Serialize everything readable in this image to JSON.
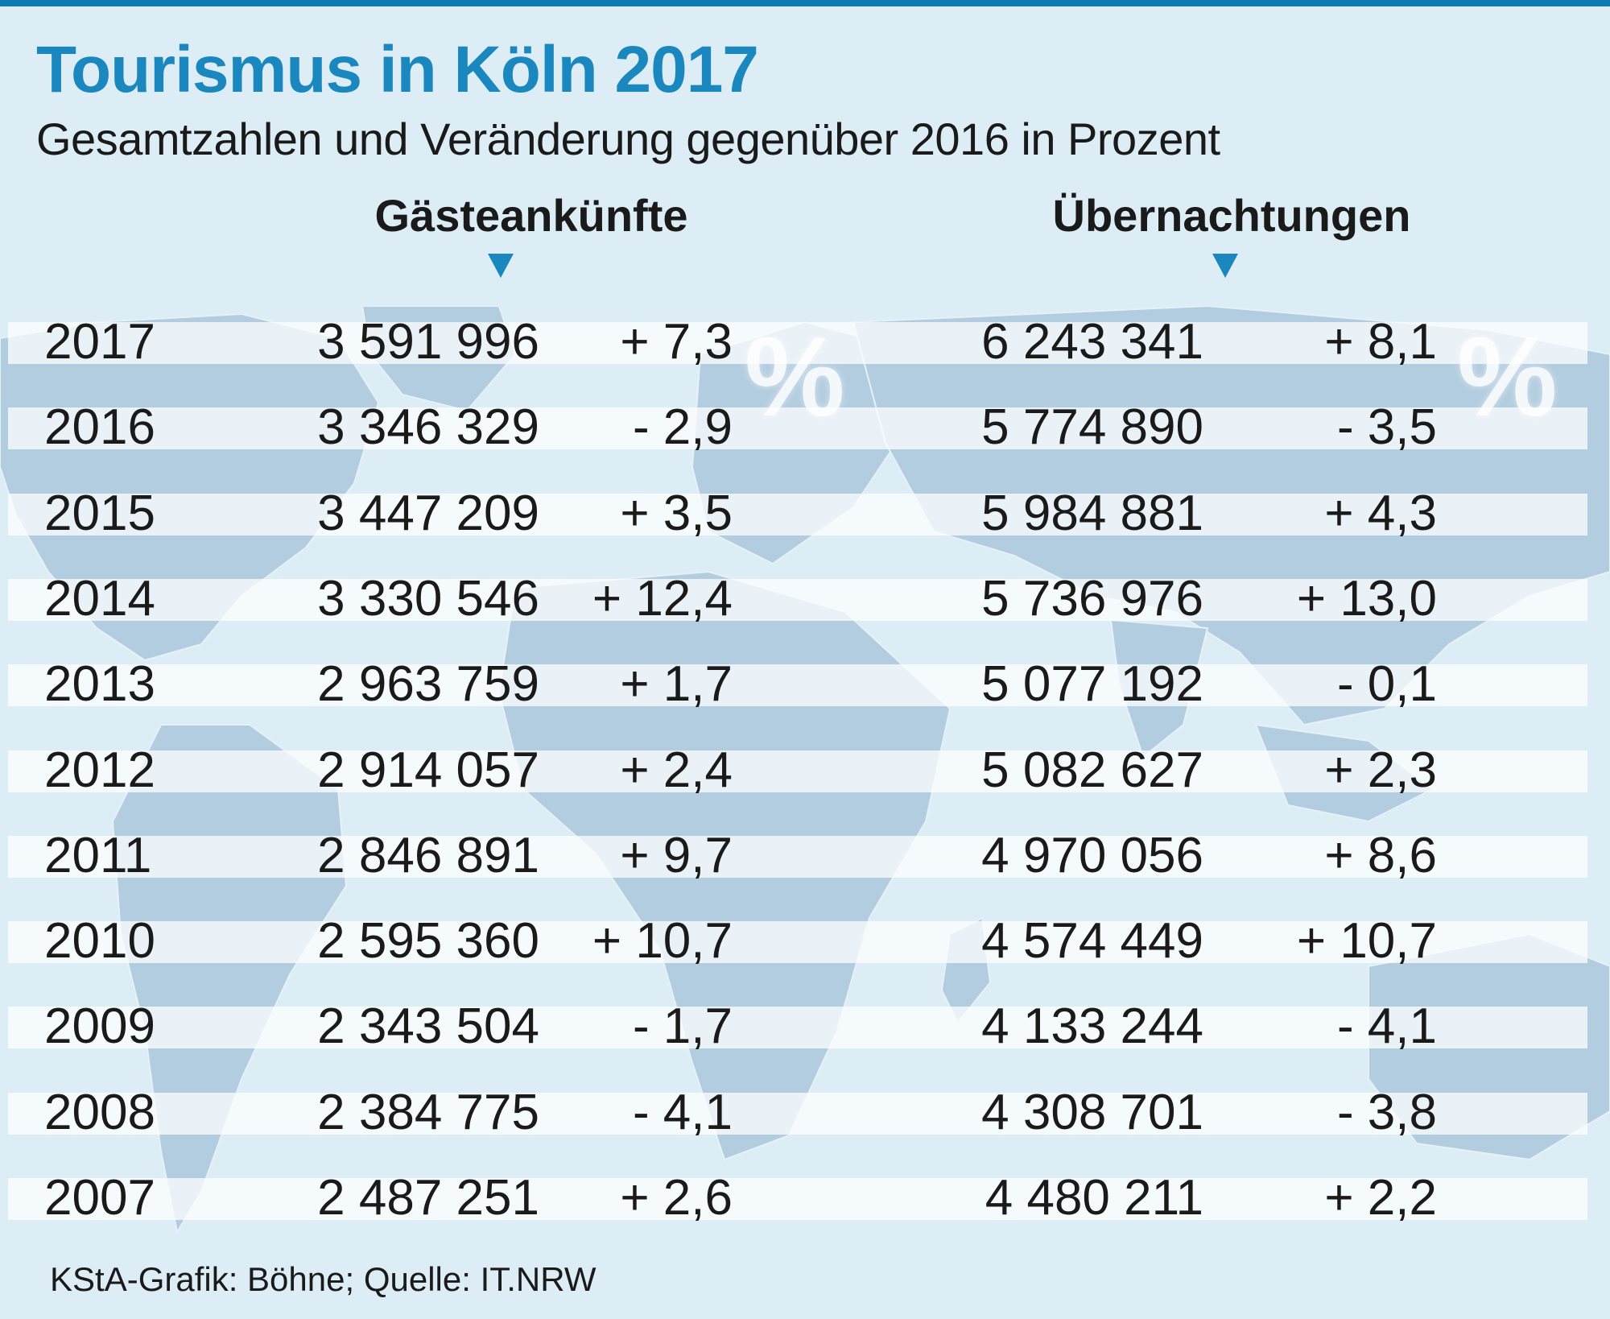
{
  "title": "Tourismus in Köln 2017",
  "subtitle": "Gesamtzahlen und Veränderung gegenüber 2016 in Prozent",
  "percent_symbol": "%",
  "source": "KStA-Grafik: Böhne; Quelle: IT.NRW",
  "colors": {
    "title": "#1b87bf",
    "accent": "#0f7bb3",
    "background": "#dcedf5",
    "map": "#b3cde0"
  },
  "chart_data": {
    "type": "table",
    "title": "Tourismus in Köln 2017",
    "subtitle": "Gesamtzahlen und Veränderung gegenüber 2016 in Prozent",
    "columns": [
      "Gästeankünfte",
      "Übernachtungen"
    ],
    "rows": [
      {
        "year": "2017",
        "arrivals": "3 591 996",
        "arrivals_change": "+ 7,3",
        "nights": "6 243 341",
        "nights_change": "+ 8,1"
      },
      {
        "year": "2016",
        "arrivals": "3 346 329",
        "arrivals_change": "- 2,9",
        "nights": "5 774 890",
        "nights_change": "- 3,5"
      },
      {
        "year": "2015",
        "arrivals": "3 447 209",
        "arrivals_change": "+ 3,5",
        "nights": "5 984 881",
        "nights_change": "+ 4,3"
      },
      {
        "year": "2014",
        "arrivals": "3 330 546",
        "arrivals_change": "+ 12,4",
        "nights": "5 736 976",
        "nights_change": "+ 13,0"
      },
      {
        "year": "2013",
        "arrivals": "2 963 759",
        "arrivals_change": "+ 1,7",
        "nights": "5 077 192",
        "nights_change": "- 0,1"
      },
      {
        "year": "2012",
        "arrivals": "2 914 057",
        "arrivals_change": "+ 2,4",
        "nights": "5 082 627",
        "nights_change": "+ 2,3"
      },
      {
        "year": "2011",
        "arrivals": "2 846 891",
        "arrivals_change": "+ 9,7",
        "nights": "4 970 056",
        "nights_change": "+ 8,6"
      },
      {
        "year": "2010",
        "arrivals": "2 595 360",
        "arrivals_change": "+ 10,7",
        "nights": "4 574 449",
        "nights_change": "+ 10,7"
      },
      {
        "year": "2009",
        "arrivals": "2 343 504",
        "arrivals_change": "- 1,7",
        "nights": "4 133 244",
        "nights_change": "- 4,1"
      },
      {
        "year": "2008",
        "arrivals": "2 384 775",
        "arrivals_change": "- 4,1",
        "nights": "4 308 701",
        "nights_change": "- 3,8"
      },
      {
        "year": "2007",
        "arrivals": "2 487 251",
        "arrivals_change": "+ 2,6",
        "nights": "4 480 211",
        "nights_change": "+ 2,2"
      }
    ]
  }
}
